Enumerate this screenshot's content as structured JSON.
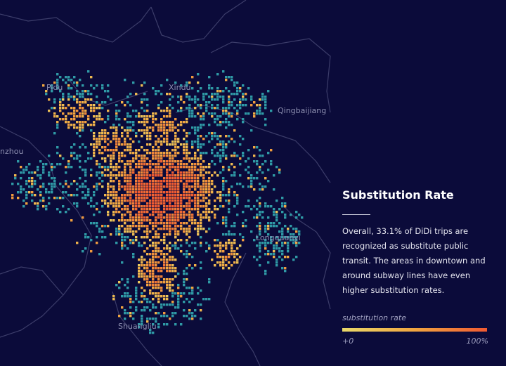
{
  "colors": {
    "background": "#0b0b3a",
    "boundary": "#3c3d6a",
    "low_coverage": "#2f9aa6",
    "gradient_low": "#e9d86a",
    "gradient_mid": "#f0a540",
    "gradient_high": "#f05a32"
  },
  "map": {
    "place_labels": [
      "Pidu",
      "Xindu",
      "Qingbaijiang",
      "nzhou",
      "Longquanyi",
      "Shuangliu"
    ]
  },
  "info": {
    "title": "Substitution Rate",
    "body": "Overall, 33.1% of DiDi trips are recognized as substitute public transit. The areas in downtown and around subway lines have even higher substitution rates."
  },
  "legend": {
    "title": "substitution rate",
    "min_label": "+0",
    "max_label": "100%"
  }
}
